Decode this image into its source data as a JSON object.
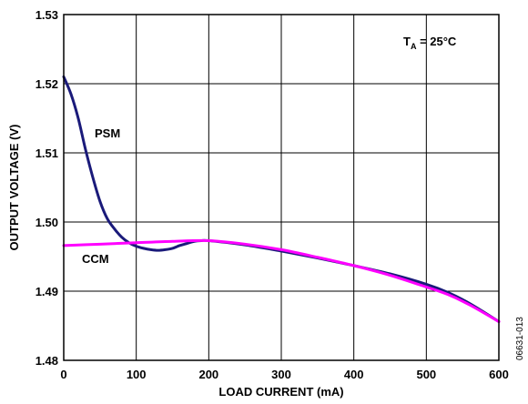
{
  "chart_data": {
    "type": "line",
    "xlabel": "LOAD CURRENT (mA)",
    "ylabel": "OUTPUT VOLTAGE (V)",
    "xlim": [
      0,
      600
    ],
    "ylim": [
      1.48,
      1.53
    ],
    "xticks": [
      0,
      100,
      200,
      300,
      400,
      500,
      600
    ],
    "xtick_labels": [
      "0",
      "100",
      "200",
      "300",
      "400",
      "500",
      "600"
    ],
    "yticks": [
      1.48,
      1.49,
      1.5,
      1.51,
      1.52,
      1.53
    ],
    "ytick_labels": [
      "1.48",
      "1.49",
      "1.50",
      "1.51",
      "1.52",
      "1.53"
    ],
    "grid": true,
    "annotation": {
      "main": "T",
      "sub": "A",
      "rest": " = 25°C"
    },
    "figure_id": "06631-013",
    "series": [
      {
        "name": "PSM",
        "color": "#1a1a7a",
        "points": [
          [
            0,
            1.521
          ],
          [
            10,
            1.5185
          ],
          [
            20,
            1.515
          ],
          [
            30,
            1.5105
          ],
          [
            40,
            1.5065
          ],
          [
            50,
            1.503
          ],
          [
            60,
            1.5005
          ],
          [
            70,
            1.499
          ],
          [
            80,
            1.4978
          ],
          [
            90,
            1.497
          ],
          [
            100,
            1.4965
          ],
          [
            110,
            1.4962
          ],
          [
            120,
            1.496
          ],
          [
            130,
            1.4959
          ],
          [
            140,
            1.496
          ],
          [
            150,
            1.4962
          ],
          [
            160,
            1.4966
          ],
          [
            170,
            1.4969
          ],
          [
            180,
            1.4972
          ],
          [
            190,
            1.4973
          ],
          [
            200,
            1.4973
          ],
          [
            250,
            1.4967
          ],
          [
            300,
            1.4958
          ],
          [
            350,
            1.4948
          ],
          [
            400,
            1.4937
          ],
          [
            450,
            1.4925
          ],
          [
            500,
            1.491
          ],
          [
            530,
            1.4898
          ],
          [
            560,
            1.4882
          ],
          [
            600,
            1.4856
          ]
        ]
      },
      {
        "name": "CCM",
        "color": "#ff00ff",
        "points": [
          [
            0,
            1.4966
          ],
          [
            50,
            1.4968
          ],
          [
            100,
            1.497
          ],
          [
            150,
            1.4972
          ],
          [
            200,
            1.4973
          ],
          [
            250,
            1.4968
          ],
          [
            300,
            1.496
          ],
          [
            350,
            1.4949
          ],
          [
            400,
            1.4937
          ],
          [
            450,
            1.4923
          ],
          [
            500,
            1.4906
          ],
          [
            530,
            1.4895
          ],
          [
            560,
            1.488
          ],
          [
            600,
            1.4856
          ]
        ]
      }
    ]
  }
}
